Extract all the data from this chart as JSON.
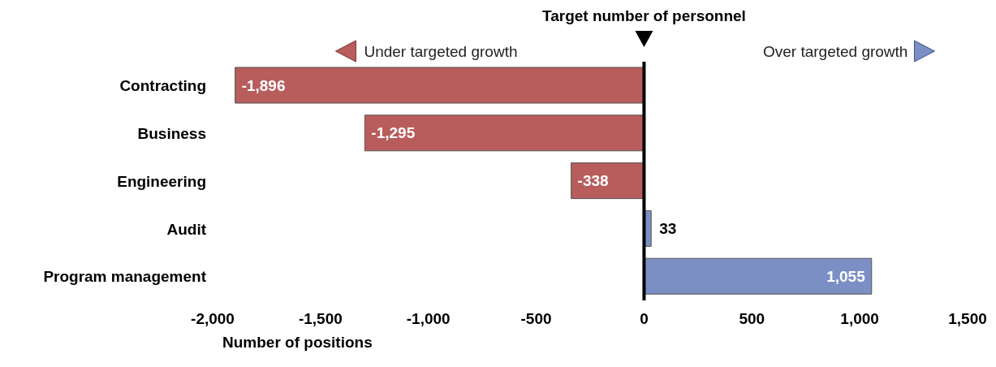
{
  "chart_data": {
    "type": "bar",
    "orientation": "horizontal",
    "categories": [
      "Contracting",
      "Business",
      "Engineering",
      "Audit",
      "Program management"
    ],
    "values": [
      -1896,
      -1295,
      -338,
      33,
      1055
    ],
    "colors": [
      "#b85c5c",
      "#b85c5c",
      "#b85c5c",
      "#7b8fc4",
      "#7b8fc4"
    ],
    "value_labels": [
      "-1,896",
      "-1,295",
      "-338",
      "33",
      "1,055"
    ],
    "xlim": [
      -2000,
      1500
    ],
    "xticks": [
      {
        "value": -2000,
        "label": "-2,000"
      },
      {
        "value": -1500,
        "label": "-1,500"
      },
      {
        "value": -1000,
        "label": "-1,000"
      },
      -500,
      0,
      500,
      {
        "value": 1000,
        "label": "1,000"
      },
      {
        "value": 1500,
        "label": "1,500"
      }
    ],
    "xlabel": "Number of positions",
    "ref_lines": [
      {
        "axis": "x",
        "value": 0,
        "label": "Target number of personnel",
        "color": "#000000"
      }
    ],
    "annotations": [
      "Under targeted growth",
      "Over targeted growth"
    ],
    "grid": false,
    "legend": false
  }
}
